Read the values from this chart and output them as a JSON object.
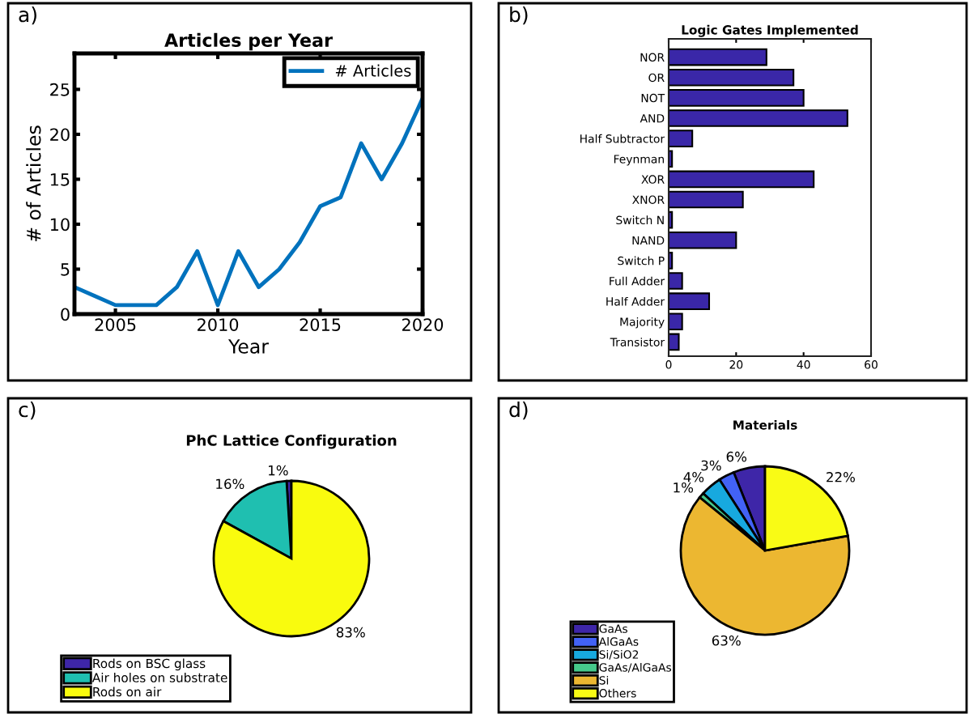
{
  "chart_data": [
    {
      "type": "line",
      "title": "Articles per Year",
      "xlabel": "Year",
      "ylabel": "# of Articles",
      "x": [
        2003,
        2004,
        2005,
        2006,
        2007,
        2008,
        2009,
        2010,
        2011,
        2012,
        2013,
        2014,
        2015,
        2016,
        2017,
        2018,
        2019,
        2020
      ],
      "series": [
        {
          "name": "# Articles",
          "color": "#0072bd",
          "values": [
            3,
            2,
            1,
            1,
            1,
            3,
            7,
            1,
            7,
            3,
            5,
            8,
            12,
            13,
            19,
            15,
            19,
            24
          ]
        }
      ],
      "xlim": [
        2003,
        2020
      ],
      "ylim": [
        0,
        29
      ],
      "xticks": [
        2005,
        2010,
        2015,
        2020
      ],
      "yticks": [
        0,
        5,
        10,
        15,
        20,
        25
      ],
      "grid": false,
      "legend": "top right",
      "marker": "none",
      "line_style": "solid",
      "annotations": [
        "a)"
      ]
    },
    {
      "type": "bar",
      "orientation": "horizontal",
      "title": "Logic Gates Implemented",
      "categories": [
        "NOR",
        "OR",
        "NOT",
        "AND",
        "Half Subtractor",
        "Feynman",
        "XOR",
        "XNOR",
        "Switch N",
        "NAND",
        "Switch P",
        "Full Adder",
        "Half Adder",
        "Majority",
        "Transistor"
      ],
      "values": [
        29,
        37,
        40,
        53,
        7,
        1,
        43,
        22,
        1,
        20,
        1,
        4,
        12,
        4,
        3
      ],
      "color": "#3a27a8",
      "xlim": [
        0,
        60
      ],
      "xticks": [
        0,
        20,
        40,
        60
      ],
      "grid": false,
      "annotations": [
        "b)"
      ]
    },
    {
      "type": "pie",
      "title": "PhC Lattice Configuration",
      "categories": [
        "Rods on BSC glass",
        "Air holes on substrate",
        "Rods on air"
      ],
      "values": [
        1,
        16,
        83
      ],
      "colors": [
        "#3e26a8",
        "#1fbfb0",
        "#f9fb0e"
      ],
      "value_labels": [
        "1%",
        "16%",
        "83%"
      ],
      "legend": "bottom left",
      "annotations": [
        "c)"
      ]
    },
    {
      "type": "pie",
      "title": "Materials",
      "categories": [
        "GaAs",
        "AlGaAs",
        "Si/SiO2",
        "GaAs/AlGaAs",
        "Si",
        "Others"
      ],
      "values": [
        6,
        3,
        4,
        1,
        63,
        22
      ],
      "colors": [
        "#3e26a8",
        "#4262f5",
        "#17a9df",
        "#46c98b",
        "#ecb731",
        "#f9fb15"
      ],
      "value_labels": [
        "6%",
        "3%",
        "4%",
        "1%",
        "63%",
        "22%"
      ],
      "legend": "bottom left",
      "annotations": [
        "d)"
      ]
    }
  ]
}
